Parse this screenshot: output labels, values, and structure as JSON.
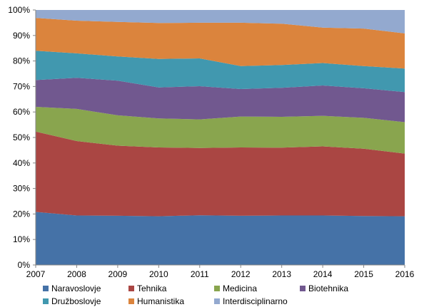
{
  "chart_data": {
    "type": "area",
    "stacked": true,
    "percent": true,
    "x": [
      "2007",
      "2008",
      "2009",
      "2010",
      "2011",
      "2012",
      "2013",
      "2014",
      "2015",
      "2016"
    ],
    "ylim": [
      0,
      100
    ],
    "yticks": [
      "0%",
      "10%",
      "20%",
      "30%",
      "40%",
      "50%",
      "60%",
      "70%",
      "80%",
      "90%",
      "100%"
    ],
    "grid": true,
    "legend_position": "bottom",
    "series": [
      {
        "name": "Naravoslovje",
        "color": "#4572A7",
        "values": [
          20.8,
          19.4,
          19.3,
          19.1,
          19.5,
          19.3,
          19.4,
          19.4,
          19.2,
          19.1
        ]
      },
      {
        "name": "Tehnika",
        "color": "#AA4643",
        "values": [
          31.5,
          29.2,
          27.5,
          27.0,
          26.4,
          26.8,
          26.6,
          27.1,
          26.4,
          24.6
        ]
      },
      {
        "name": "Medicina",
        "color": "#89A54E",
        "values": [
          9.7,
          12.6,
          11.9,
          11.4,
          11.2,
          12.1,
          12.1,
          12.0,
          12.1,
          12.3
        ]
      },
      {
        "name": "Biotehnika",
        "color": "#71588F",
        "values": [
          10.5,
          12.2,
          13.6,
          12.1,
          13.0,
          10.8,
          11.4,
          11.9,
          11.6,
          11.8
        ]
      },
      {
        "name": "Družboslovje",
        "color": "#4198AF",
        "values": [
          11.5,
          9.6,
          9.5,
          11.2,
          10.9,
          9.0,
          8.9,
          8.8,
          8.7,
          9.2
        ]
      },
      {
        "name": "Humanistika",
        "color": "#DB843D",
        "values": [
          12.9,
          12.8,
          13.5,
          14.1,
          14.0,
          17.0,
          16.2,
          13.9,
          14.7,
          13.8
        ]
      },
      {
        "name": "Interdisciplinarno",
        "color": "#93A9CF",
        "values": [
          3.1,
          4.2,
          4.7,
          5.1,
          5.0,
          5.0,
          5.4,
          6.9,
          7.3,
          9.2
        ]
      }
    ]
  }
}
